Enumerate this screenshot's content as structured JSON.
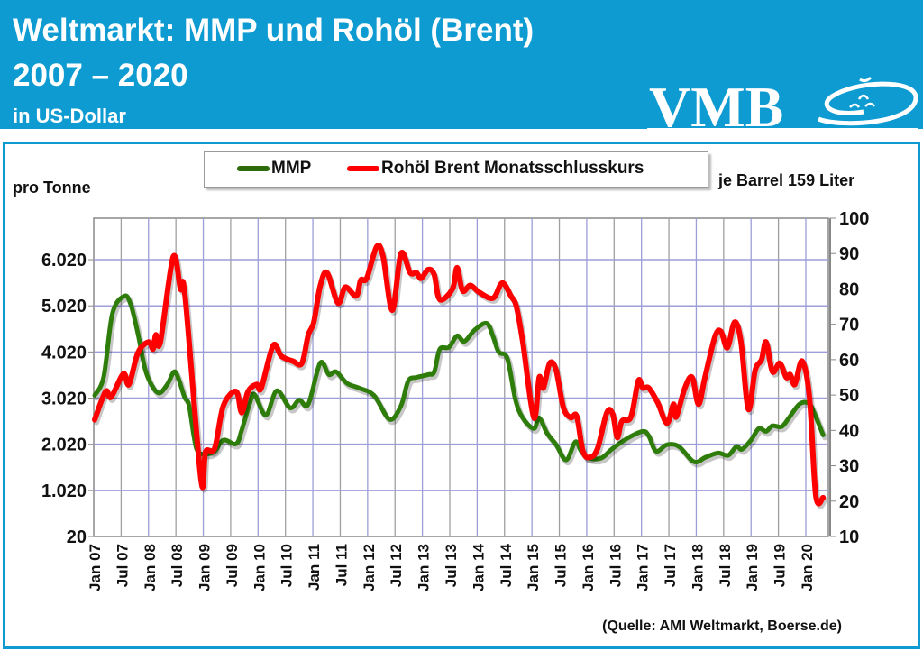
{
  "header": {
    "title_line1": "Weltmarkt: MMP und Rohöl (Brent)",
    "title_line2": "2007 – 2020",
    "subtitle": "in US-Dollar",
    "logo_text": "VMB",
    "background_color": "#0e9bd2"
  },
  "chart_data": {
    "type": "line",
    "title": "Weltmarkt: MMP und Rohöl (Brent) 2007 – 2020",
    "x_unit": "months since Jan 2007",
    "ylabel_left": "pro Tonne",
    "ylabel_right": "je Barrel 159 Liter",
    "ylim_left": [
      20,
      6920
    ],
    "ylim_right": [
      10,
      100
    ],
    "xlim": [
      0,
      161
    ],
    "left_ticks": [
      20,
      1020,
      2020,
      3020,
      4020,
      5020,
      6020
    ],
    "left_tick_labels": [
      "20",
      "1.020",
      "2.020",
      "3.020",
      "4.020",
      "5.020",
      "6.020"
    ],
    "right_ticks": [
      10,
      20,
      30,
      40,
      50,
      60,
      70,
      80,
      90,
      100
    ],
    "right_tick_labels": [
      "10",
      "20",
      "30",
      "40",
      "50",
      "60",
      "70",
      "80",
      "90",
      "100"
    ],
    "x_tick_labels": [
      "Jan 07",
      "Jul 07",
      "Jan 08",
      "Jul 08",
      "Jan 09",
      "Jul 09",
      "Jan 10",
      "Jul 10",
      "Jan 11",
      "Jul 11",
      "Jan 12",
      "Jul 12",
      "Jan 13",
      "Jul 13",
      "Jan 14",
      "Jul 14",
      "Jan 15",
      "Jul 15",
      "Jan 16",
      "Jul 16",
      "Jan 17",
      "Jul 17",
      "Jan 18",
      "Jul 18",
      "Jan 19",
      "Jul 19",
      "Jan 20"
    ],
    "x_tick_step_months": 6,
    "grid": true,
    "legend_position": "top-center",
    "series": [
      {
        "name": "MMP",
        "axis": "left",
        "color": "#2e7d0a",
        "points": [
          [
            0.2,
            3080
          ],
          [
            2.2,
            3490
          ],
          [
            4.1,
            4860
          ],
          [
            6.7,
            5230
          ],
          [
            8.1,
            5050
          ],
          [
            9.7,
            4410
          ],
          [
            11.5,
            3570
          ],
          [
            14,
            3140
          ],
          [
            16,
            3300
          ],
          [
            17.6,
            3590
          ],
          [
            18.6,
            3430
          ],
          [
            19.9,
            3040
          ],
          [
            20.9,
            2850
          ],
          [
            22.5,
            1930
          ],
          [
            24.5,
            1810
          ],
          [
            26.5,
            1870
          ],
          [
            28.4,
            2110
          ],
          [
            31.2,
            2030
          ],
          [
            32.4,
            2320
          ],
          [
            34.2,
            2910
          ],
          [
            35.2,
            3100
          ],
          [
            37.7,
            2650
          ],
          [
            40.1,
            3180
          ],
          [
            43,
            2810
          ],
          [
            45,
            2980
          ],
          [
            47,
            2890
          ],
          [
            49.6,
            3780
          ],
          [
            51.5,
            3530
          ],
          [
            53.1,
            3590
          ],
          [
            55.5,
            3340
          ],
          [
            58.1,
            3240
          ],
          [
            61.4,
            3080
          ],
          [
            64.8,
            2560
          ],
          [
            67.3,
            2850
          ],
          [
            68.9,
            3390
          ],
          [
            70.7,
            3470
          ],
          [
            73.3,
            3530
          ],
          [
            74.6,
            3590
          ],
          [
            75.8,
            4080
          ],
          [
            77.8,
            4120
          ],
          [
            79.6,
            4370
          ],
          [
            81.2,
            4250
          ],
          [
            83.5,
            4500
          ],
          [
            86.1,
            4640
          ],
          [
            87.5,
            4350
          ],
          [
            88.7,
            4020
          ],
          [
            90.6,
            3880
          ],
          [
            92.4,
            2980
          ],
          [
            94,
            2590
          ],
          [
            96.4,
            2360
          ],
          [
            97.6,
            2590
          ],
          [
            99.3,
            2260
          ],
          [
            101.3,
            2010
          ],
          [
            103.5,
            1680
          ],
          [
            105.5,
            2070
          ],
          [
            106.8,
            1870
          ],
          [
            108.4,
            1720
          ],
          [
            111.2,
            1720
          ],
          [
            113.7,
            1930
          ],
          [
            117.1,
            2160
          ],
          [
            120.3,
            2300
          ],
          [
            121.6,
            2200
          ],
          [
            123.2,
            1870
          ],
          [
            125.6,
            2010
          ],
          [
            128.2,
            1970
          ],
          [
            131.5,
            1640
          ],
          [
            134.1,
            1740
          ],
          [
            136.8,
            1830
          ],
          [
            139,
            1780
          ],
          [
            140.8,
            1970
          ],
          [
            142,
            1910
          ],
          [
            144,
            2110
          ],
          [
            145.7,
            2360
          ],
          [
            147.3,
            2300
          ],
          [
            148.7,
            2420
          ],
          [
            150.7,
            2400
          ],
          [
            152.3,
            2590
          ],
          [
            154.6,
            2890
          ],
          [
            156.6,
            2910
          ],
          [
            157.8,
            2710
          ],
          [
            159.8,
            2220
          ]
        ]
      },
      {
        "name": "Rohöl Brent Monatsschlusskurs",
        "axis": "right",
        "color": "#ff0000",
        "points": [
          [
            0.2,
            43
          ],
          [
            2.6,
            51
          ],
          [
            3.8,
            49.4
          ],
          [
            6.5,
            56
          ],
          [
            7.7,
            53
          ],
          [
            9.7,
            62
          ],
          [
            12,
            65
          ],
          [
            13,
            63
          ],
          [
            13.6,
            67
          ],
          [
            14.6,
            65
          ],
          [
            17.4,
            89
          ],
          [
            19,
            80
          ],
          [
            20,
            78
          ],
          [
            23.5,
            26
          ],
          [
            24.5,
            34
          ],
          [
            26.5,
            35
          ],
          [
            28.4,
            47
          ],
          [
            31.2,
            51
          ],
          [
            32.4,
            45
          ],
          [
            33.8,
            51
          ],
          [
            35.7,
            53
          ],
          [
            36.7,
            52
          ],
          [
            39.3,
            64
          ],
          [
            41.1,
            61
          ],
          [
            43.6,
            59.6
          ],
          [
            45.6,
            59
          ],
          [
            47,
            67
          ],
          [
            48.2,
            70.6
          ],
          [
            49.6,
            80.8
          ],
          [
            51.1,
            84.6
          ],
          [
            53.5,
            76
          ],
          [
            55.1,
            80.5
          ],
          [
            57.5,
            78
          ],
          [
            58.5,
            82.5
          ],
          [
            59.8,
            83
          ],
          [
            62,
            92
          ],
          [
            63.4,
            89
          ],
          [
            65.4,
            74
          ],
          [
            67.3,
            90
          ],
          [
            69.3,
            84.6
          ],
          [
            70.7,
            84.6
          ],
          [
            71.7,
            83
          ],
          [
            73.3,
            85.5
          ],
          [
            74.6,
            84
          ],
          [
            75.8,
            77
          ],
          [
            78.6,
            80
          ],
          [
            79.6,
            86
          ],
          [
            80.8,
            79.5
          ],
          [
            82.5,
            81
          ],
          [
            84.5,
            79
          ],
          [
            87.5,
            77.4
          ],
          [
            89.5,
            81.7
          ],
          [
            91.4,
            78
          ],
          [
            92.6,
            75
          ],
          [
            94,
            65
          ],
          [
            96.4,
            43.6
          ],
          [
            97.6,
            55
          ],
          [
            98.5,
            52
          ],
          [
            99.9,
            59
          ],
          [
            101.3,
            57
          ],
          [
            102.9,
            46.4
          ],
          [
            104.5,
            43.6
          ],
          [
            105.8,
            44
          ],
          [
            107.2,
            34
          ],
          [
            108.8,
            32.4
          ],
          [
            110.4,
            35
          ],
          [
            112.4,
            45
          ],
          [
            113.7,
            44.6
          ],
          [
            114.7,
            38
          ],
          [
            115.7,
            42.6
          ],
          [
            117.7,
            43.8
          ],
          [
            119.3,
            54
          ],
          [
            120.3,
            52
          ],
          [
            121.6,
            52
          ],
          [
            123.6,
            47.7
          ],
          [
            125.6,
            42
          ],
          [
            127,
            47.4
          ],
          [
            127.6,
            43.8
          ],
          [
            129.5,
            52
          ],
          [
            131.1,
            55
          ],
          [
            132.5,
            47.4
          ],
          [
            133.9,
            55
          ],
          [
            136.1,
            66.5
          ],
          [
            137.4,
            68
          ],
          [
            138.8,
            63.4
          ],
          [
            140.4,
            70.6
          ],
          [
            141.8,
            65
          ],
          [
            143.4,
            46
          ],
          [
            144.9,
            57
          ],
          [
            146.3,
            60
          ],
          [
            147.3,
            65
          ],
          [
            148.7,
            56.6
          ],
          [
            150.3,
            59
          ],
          [
            151.7,
            55
          ],
          [
            152.6,
            55.8
          ],
          [
            153.6,
            53
          ],
          [
            155.2,
            59.6
          ],
          [
            156.8,
            49.4
          ],
          [
            158.2,
            21.5
          ],
          [
            159.8,
            21
          ]
        ]
      }
    ]
  },
  "source": "(Quelle: AMI Weltmarkt, Boerse.de)"
}
